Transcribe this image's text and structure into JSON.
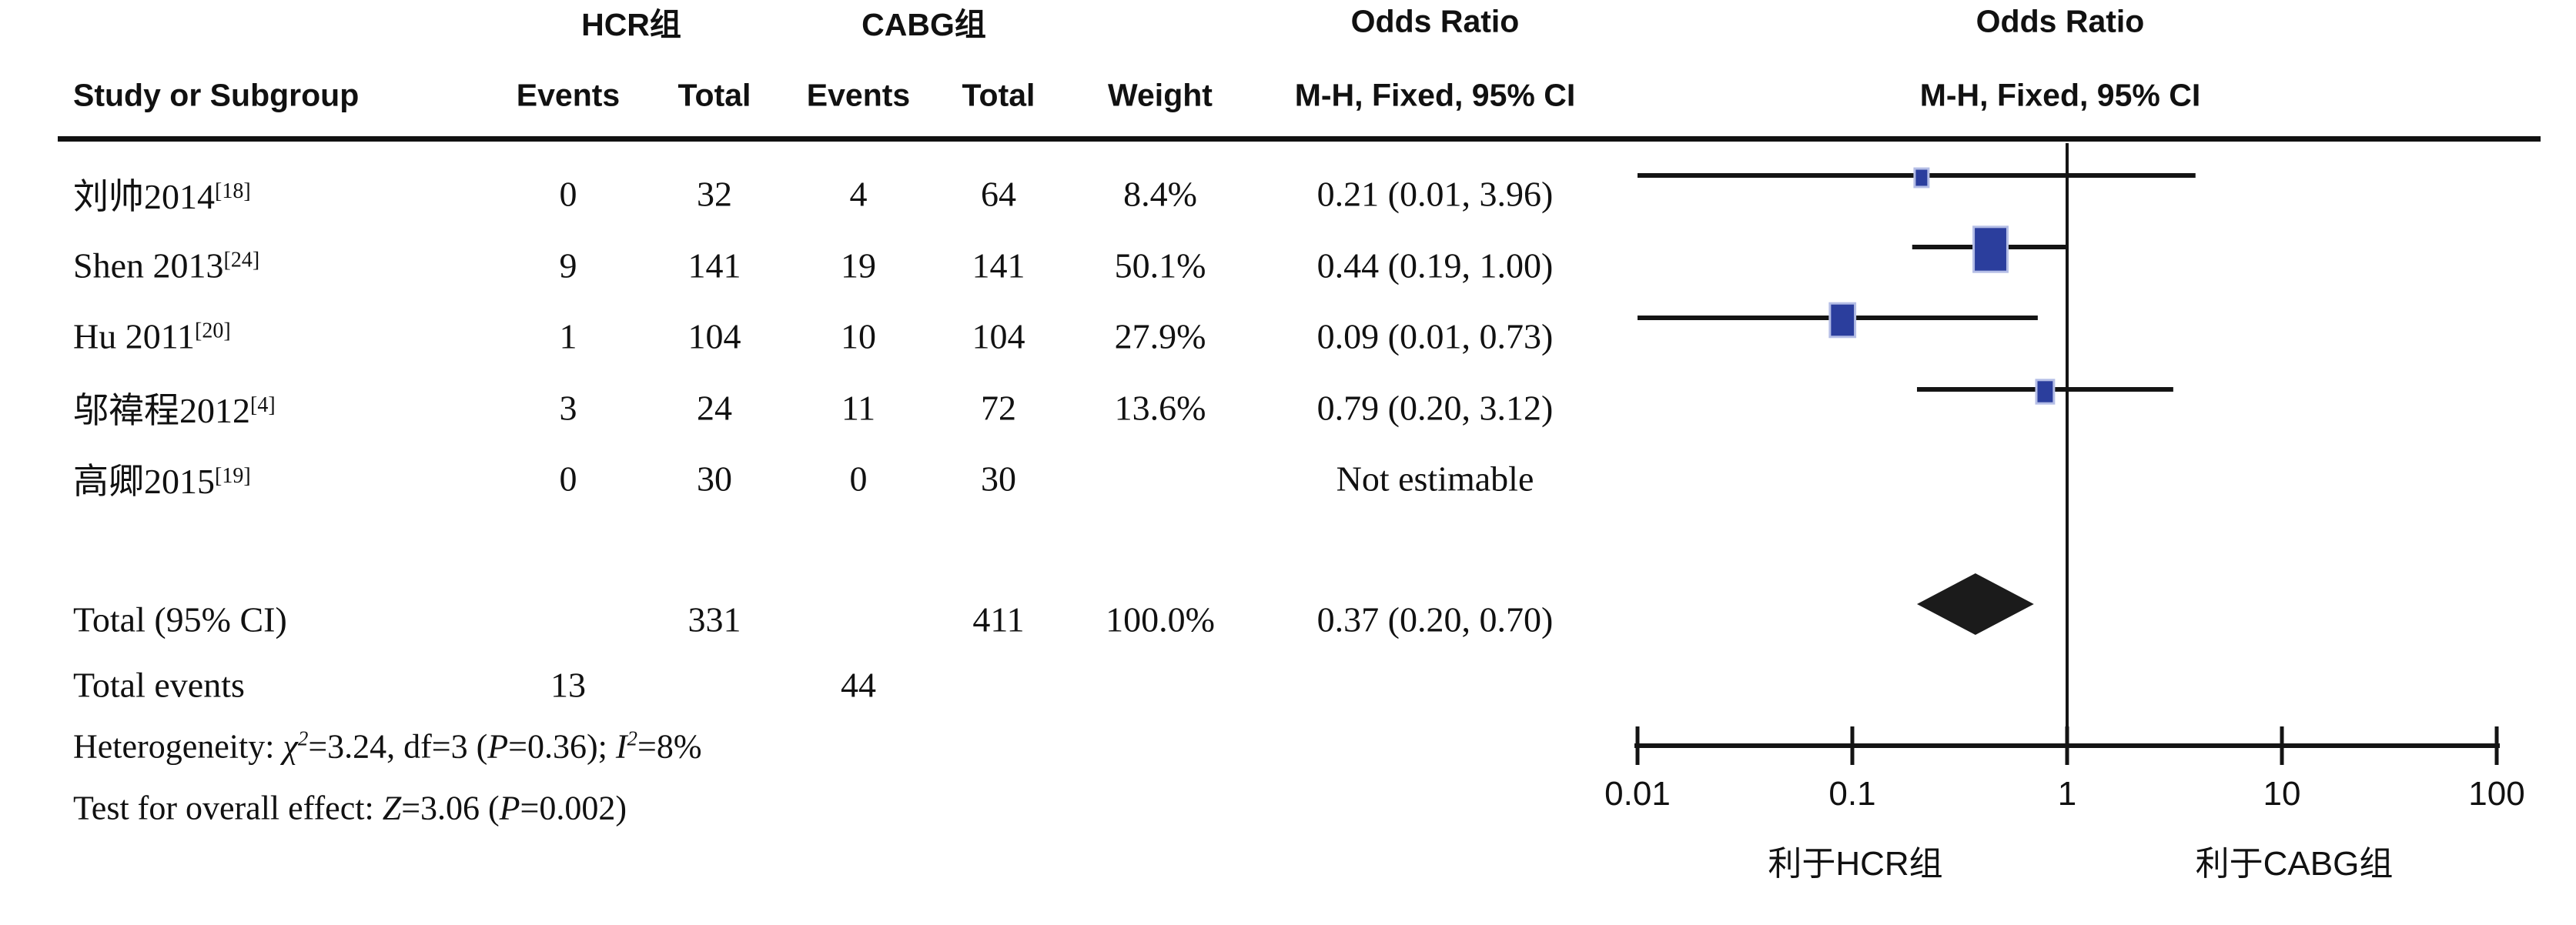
{
  "header": {
    "group_hcr": "HCR组",
    "group_cabg": "CABG组",
    "odds_ratio_col": "Odds Ratio",
    "odds_ratio_plot": "Odds Ratio",
    "method_col": "M-H, Fixed, 95% CI",
    "method_plot": "M-H, Fixed, 95% CI",
    "study_col": "Study or Subgroup",
    "events_col_hcr": "Events",
    "total_col_hcr": "Total",
    "events_col_cabg": "Events",
    "total_col_cabg": "Total",
    "weight_col": "Weight"
  },
  "chart_data": {
    "type": "forest",
    "x_scale": "log10",
    "effect_measure": "Odds Ratio, M-H, Fixed, 95% CI",
    "axis": {
      "min": 0.01,
      "max": 100,
      "ticks": [
        0.01,
        0.1,
        1,
        10,
        100
      ],
      "tick_labels": [
        "0.01",
        "0.1",
        "1",
        "10",
        "100"
      ],
      "null_line": 1,
      "left_label": "利于HCR组",
      "right_label": "利于CABG组"
    },
    "studies": [
      {
        "name": "刘帅2014",
        "ref": "[18]",
        "hcr_events": "0",
        "hcr_total": "32",
        "cabg_events": "4",
        "cabg_total": "64",
        "weight": "8.4%",
        "weight_value": 8.4,
        "ci_text": "0.21 (0.01, 3.96)",
        "or": 0.21,
        "ci_low": 0.01,
        "ci_high": 3.96,
        "estimable": true
      },
      {
        "name": "Shen 2013",
        "ref": "[24]",
        "hcr_events": "9",
        "hcr_total": "141",
        "cabg_events": "19",
        "cabg_total": "141",
        "weight": "50.1%",
        "weight_value": 50.1,
        "ci_text": "0.44 (0.19, 1.00)",
        "or": 0.44,
        "ci_low": 0.19,
        "ci_high": 1.0,
        "estimable": true
      },
      {
        "name": "Hu 2011",
        "ref": "[20]",
        "hcr_events": "1",
        "hcr_total": "104",
        "cabg_events": "10",
        "cabg_total": "104",
        "weight": "27.9%",
        "weight_value": 27.9,
        "ci_text": "0.09 (0.01, 0.73)",
        "or": 0.09,
        "ci_low": 0.01,
        "ci_high": 0.73,
        "estimable": true
      },
      {
        "name": "邬禕程2012",
        "ref": "[4]",
        "hcr_events": "3",
        "hcr_total": "24",
        "cabg_events": "11",
        "cabg_total": "72",
        "weight": "13.6%",
        "weight_value": 13.6,
        "ci_text": "0.79 (0.20, 3.12)",
        "or": 0.79,
        "ci_low": 0.2,
        "ci_high": 3.12,
        "estimable": true
      },
      {
        "name": "高卿2015",
        "ref": "[19]",
        "hcr_events": "0",
        "hcr_total": "30",
        "cabg_events": "0",
        "cabg_total": "30",
        "weight": "",
        "weight_value": 0,
        "ci_text": "Not estimable",
        "or": null,
        "ci_low": null,
        "ci_high": null,
        "estimable": false
      }
    ],
    "total": {
      "label": "Total (95% CI)",
      "hcr_total": "331",
      "cabg_total": "411",
      "weight": "100.0%",
      "ci_text": "0.37 (0.20, 0.70)",
      "or": 0.37,
      "ci_low": 0.2,
      "ci_high": 0.7
    },
    "total_events": {
      "label": "Total events",
      "hcr": "13",
      "cabg": "44"
    },
    "heterogeneity_segments": [
      {
        "t": "Heterogeneity: "
      },
      {
        "t": "χ",
        "i": true,
        "sup": "2"
      },
      {
        "t": "=3.24, df=3 ("
      },
      {
        "t": "P",
        "i": true
      },
      {
        "t": "=0.36); "
      },
      {
        "t": "I",
        "i": true,
        "sup": "2"
      },
      {
        "t": "=8%"
      }
    ],
    "overall_test_segments": [
      {
        "t": "Test for overall effect: "
      },
      {
        "t": "Z",
        "i": true
      },
      {
        "t": "=3.06 ("
      },
      {
        "t": "P",
        "i": true
      },
      {
        "t": "=0.002)"
      }
    ],
    "colors": {
      "square": "#2b3e9d",
      "square_border": "#b5bee6",
      "diamond": "#1b1b1b",
      "line": "#141414"
    }
  }
}
